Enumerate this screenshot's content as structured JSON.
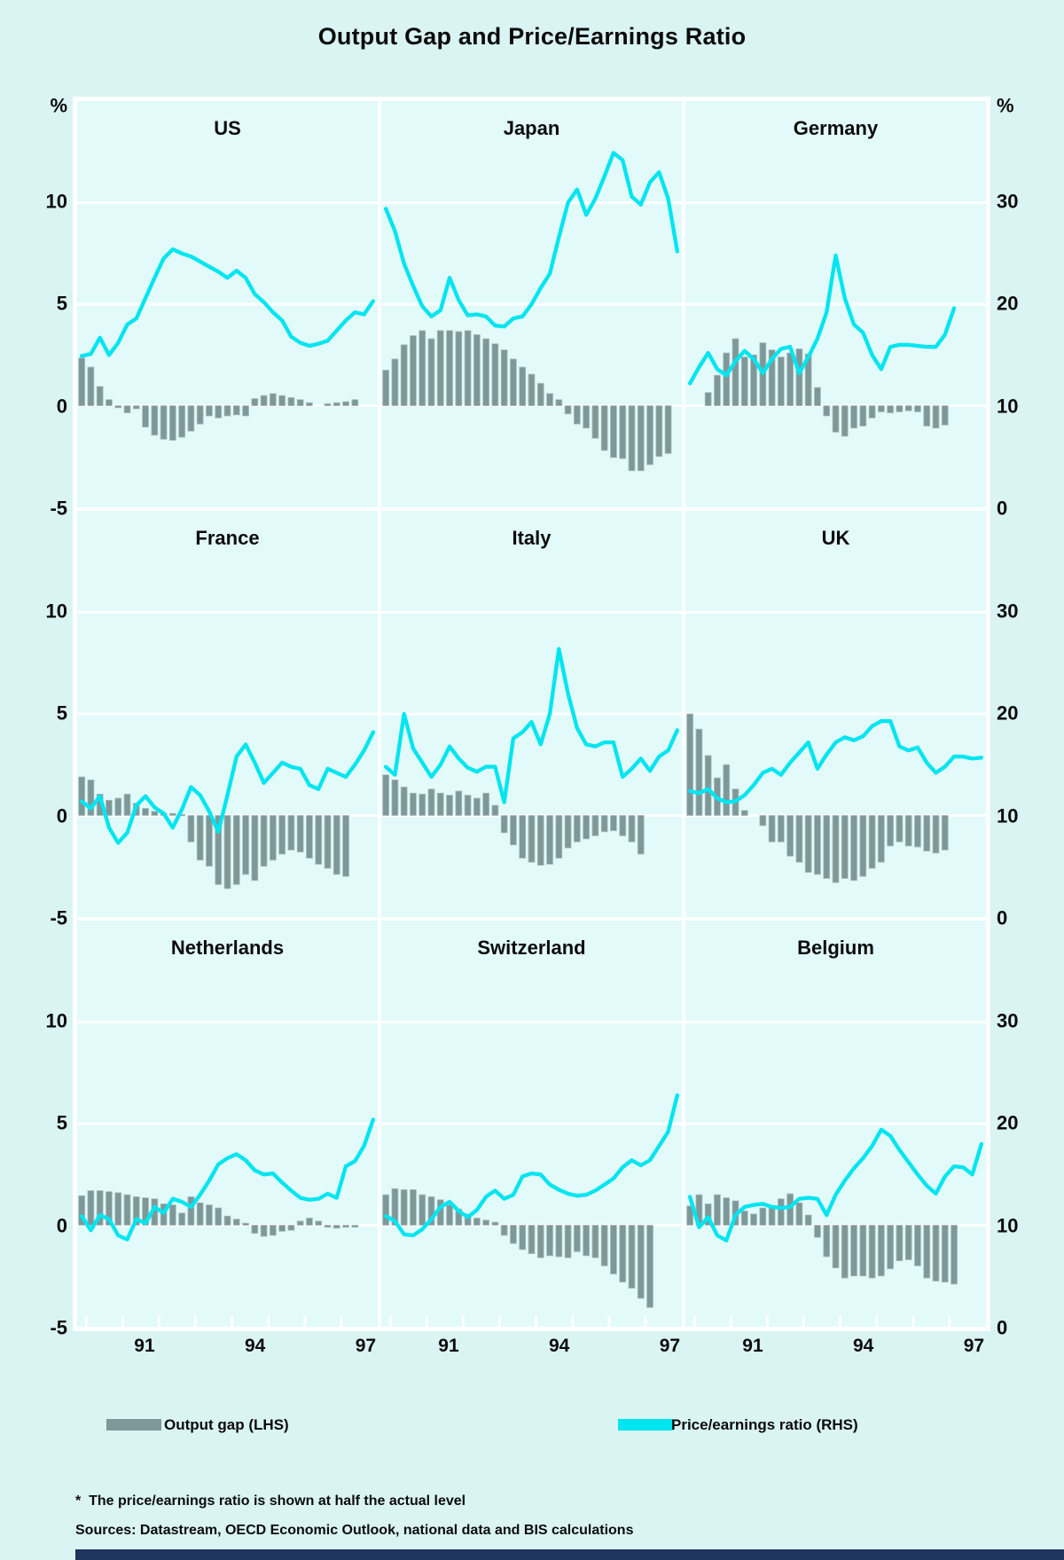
{
  "title": "Output Gap and Price/Earnings Ratio",
  "legend": {
    "output_gap_label": "Output gap (LHS)",
    "pe_ratio_label": "Price/earnings ratio (RHS)"
  },
  "footnote": "*  The price/earnings ratio is shown at half the actual level",
  "sources": "Sources: Datastream, OECD Economic Outlook, national data and BIS calculations",
  "colors": {
    "bar": "#7e9899",
    "bar_edge": "#a9bdbd",
    "line": "#00e5f0",
    "grid": "#ffffff",
    "panel_bg": "#e2fafa",
    "page_bg": "#d9f4f2",
    "bottom_bar": "#1e3560",
    "text": "#0b0b0b"
  },
  "chart_data": {
    "type": "bar+line",
    "title": "Output Gap and Price/Earnings Ratio",
    "frequency": "quarterly",
    "period": "1989Q4 - 1997Q4",
    "x_axis": {
      "tick_labels": [
        "91",
        "94",
        "97"
      ],
      "ticks_every": "1 year"
    },
    "left_axis": {
      "unit": "%",
      "ticks": [
        10,
        5,
        0,
        -5
      ],
      "range": [
        -5,
        15
      ],
      "series": "Output gap"
    },
    "right_axis": {
      "unit": "%",
      "ticks": [
        30,
        20,
        10,
        0
      ],
      "range": [
        0,
        40
      ],
      "series": "Price/earnings ratio (shown at half the actual level)"
    },
    "panels": [
      {
        "name": "US",
        "output_gap": [
          2.35,
          1.9,
          0.95,
          0.3,
          -0.1,
          -0.35,
          -0.15,
          -1.05,
          -1.45,
          -1.65,
          -1.7,
          -1.55,
          -1.25,
          -0.9,
          -0.5,
          -0.6,
          -0.5,
          -0.45,
          -0.5,
          0.35,
          0.5,
          0.6,
          0.5,
          0.4,
          0.3,
          0.15,
          null,
          0.1,
          0.15,
          0.2,
          0.3,
          null,
          null
        ],
        "pe_ratio_rhs": [
          14.9,
          15.1,
          16.7,
          15,
          16.2,
          18,
          18.6,
          20.6,
          22.6,
          24.5,
          25.4,
          25,
          24.7,
          24.2,
          23.7,
          23.2,
          22.6,
          23.3,
          22.6,
          21,
          20.2,
          19.2,
          18.4,
          16.8,
          16.2,
          15.9,
          16.1,
          16.4,
          17.4,
          18.4,
          19.2,
          19,
          20.3
        ]
      },
      {
        "name": "Japan",
        "output_gap": [
          1.75,
          2.3,
          3.0,
          3.45,
          3.7,
          3.3,
          3.7,
          3.7,
          3.65,
          3.7,
          3.5,
          3.3,
          3.05,
          2.75,
          2.3,
          1.9,
          1.55,
          1.1,
          0.6,
          0.3,
          -0.4,
          -0.9,
          -1.1,
          -1.6,
          -2.2,
          -2.55,
          -2.6,
          -3.2,
          -3.2,
          -2.9,
          -2.5,
          -2.35,
          null
        ],
        "pe_ratio_rhs": [
          29.4,
          27.2,
          24,
          21.8,
          19.8,
          18.8,
          19.4,
          22.6,
          20.4,
          18.9,
          19,
          18.8,
          17.9,
          17.8,
          18.6,
          18.8,
          20,
          21.6,
          23,
          26.6,
          30,
          31.3,
          28.8,
          30.4,
          32.6,
          34.9,
          34.2,
          30.6,
          29.8,
          32,
          33,
          30.4,
          25.2
        ]
      },
      {
        "name": "Germany",
        "output_gap": [
          null,
          null,
          0.65,
          1.5,
          2.6,
          3.3,
          2.4,
          2.5,
          3.1,
          2.75,
          2.4,
          2.6,
          2.8,
          2.55,
          0.9,
          -0.5,
          -1.3,
          -1.5,
          -1.1,
          -1.0,
          -0.6,
          -0.3,
          -0.35,
          -0.3,
          -0.25,
          -0.3,
          -1.0,
          -1.1,
          -0.95,
          null,
          null,
          null,
          null
        ],
        "pe_ratio_rhs": [
          12.2,
          13.8,
          15.2,
          13.6,
          13,
          14.4,
          15.4,
          14.6,
          13.2,
          14.6,
          15.6,
          15.8,
          13.2,
          14.8,
          16.6,
          19.2,
          24.8,
          20.6,
          18,
          17.2,
          15,
          13.6,
          15.8,
          16,
          16,
          15.9,
          15.8,
          15.8,
          17,
          19.6,
          null,
          null,
          null
        ]
      },
      {
        "name": "France",
        "output_gap": [
          1.9,
          1.75,
          1.05,
          0.75,
          0.85,
          1.05,
          0.6,
          0.35,
          0.2,
          0.1,
          0.1,
          0.05,
          -1.3,
          -2.2,
          -2.5,
          -3.4,
          -3.6,
          -3.4,
          -2.9,
          -3.2,
          -2.5,
          -2.2,
          -1.9,
          -1.7,
          -1.8,
          -2.1,
          -2.4,
          -2.6,
          -2.9,
          -3.0,
          null,
          null,
          null
        ],
        "pe_ratio_rhs": [
          11.4,
          10.7,
          11.9,
          8.8,
          7.3,
          8.3,
          11,
          11.9,
          10.8,
          10.2,
          8.8,
          10.6,
          12.8,
          12,
          10.4,
          8.4,
          12,
          15.8,
          17,
          15.2,
          13.2,
          14.2,
          15.2,
          14.8,
          14.6,
          13,
          12.6,
          14.6,
          14.2,
          13.8,
          15,
          16.4,
          18.2
        ]
      },
      {
        "name": "Italy",
        "output_gap": [
          2.0,
          1.75,
          1.4,
          1.1,
          1.05,
          1.3,
          1.1,
          1.0,
          1.2,
          1.0,
          0.85,
          1.1,
          0.5,
          -0.85,
          -1.45,
          -2.1,
          -2.3,
          -2.45,
          -2.4,
          -2.1,
          -1.6,
          -1.3,
          -1.15,
          -1.0,
          -0.8,
          -0.75,
          -1.0,
          -1.3,
          -1.9,
          null,
          null,
          null,
          null
        ],
        "pe_ratio_rhs": [
          14.8,
          14,
          20,
          16.6,
          15.2,
          13.8,
          15,
          16.8,
          15.6,
          14.7,
          14.3,
          14.8,
          14.8,
          11.3,
          17.6,
          18.2,
          19.2,
          17,
          20,
          26.4,
          22,
          18.6,
          17,
          16.8,
          17.2,
          17.2,
          13.8,
          14.6,
          15.6,
          14.4,
          15.8,
          16.4,
          18.4
        ]
      },
      {
        "name": "UK",
        "output_gap": [
          5.0,
          4.25,
          2.95,
          1.85,
          2.5,
          1.3,
          0.25,
          null,
          -0.5,
          -1.3,
          -1.3,
          -2.0,
          -2.3,
          -2.8,
          -2.9,
          -3.1,
          -3.3,
          -3.1,
          -3.2,
          -3.0,
          -2.6,
          -2.3,
          -1.5,
          -1.3,
          -1.5,
          -1.55,
          -1.75,
          -1.85,
          -1.7,
          null,
          null,
          null,
          null
        ],
        "pe_ratio_rhs": [
          12.4,
          12.2,
          12.6,
          11.7,
          11.3,
          11.4,
          12,
          13,
          14.2,
          14.6,
          14,
          15.2,
          16.2,
          17.2,
          14.6,
          16,
          17.2,
          17.7,
          17.4,
          17.8,
          18.8,
          19.3,
          19.3,
          16.8,
          16.4,
          16.7,
          15.2,
          14.2,
          14.8,
          15.8,
          15.8,
          15.6,
          15.7
        ]
      },
      {
        "name": "Netherlands",
        "output_gap": [
          1.45,
          1.7,
          1.7,
          1.65,
          1.6,
          1.5,
          1.4,
          1.35,
          1.3,
          1.05,
          1.0,
          0.6,
          1.4,
          1.1,
          1.0,
          0.85,
          0.45,
          0.3,
          0.1,
          -0.4,
          -0.55,
          -0.5,
          -0.3,
          -0.25,
          0.2,
          0.35,
          0.2,
          -0.1,
          -0.15,
          -0.1,
          -0.1,
          null,
          null
        ],
        "pe_ratio_rhs": [
          10.9,
          9.5,
          11,
          10.6,
          9,
          8.6,
          10.6,
          10.2,
          11.8,
          11.2,
          12.6,
          12.3,
          11.8,
          13,
          14.4,
          16,
          16.6,
          17,
          16.4,
          15.4,
          15,
          15.1,
          14.2,
          13.4,
          12.7,
          12.5,
          12.6,
          13.1,
          12.7,
          15.8,
          16.3,
          17.8,
          20.4
        ]
      },
      {
        "name": "Switzerland",
        "output_gap": [
          1.5,
          1.8,
          1.75,
          1.75,
          1.5,
          1.4,
          1.25,
          1.0,
          0.8,
          0.55,
          0.35,
          0.25,
          0.15,
          -0.5,
          -0.9,
          -1.2,
          -1.4,
          -1.6,
          -1.5,
          -1.55,
          -1.6,
          -1.3,
          -1.5,
          -1.6,
          -2.0,
          -2.4,
          -2.8,
          -3.1,
          -3.6,
          -4.05,
          null,
          null,
          null
        ],
        "pe_ratio_rhs": [
          10.9,
          10.4,
          9.1,
          9,
          9.6,
          10.6,
          11.8,
          12.3,
          11.4,
          10.8,
          11.5,
          12.8,
          13.4,
          12.6,
          13,
          14.8,
          15.1,
          15,
          14,
          13.5,
          13.1,
          12.9,
          13,
          13.4,
          14,
          14.6,
          15.7,
          16.4,
          15.9,
          16.4,
          17.8,
          19.2,
          22.8
        ]
      },
      {
        "name": "Belgium",
        "output_gap": [
          0.95,
          1.5,
          1.05,
          1.5,
          1.35,
          1.2,
          0.7,
          0.55,
          0.85,
          0.9,
          1.3,
          1.55,
          1.1,
          0.5,
          -0.6,
          -1.55,
          -2.1,
          -2.6,
          -2.5,
          -2.5,
          -2.6,
          -2.5,
          -2.15,
          -1.75,
          -1.7,
          -2.0,
          -2.6,
          -2.75,
          -2.8,
          -2.9,
          null,
          null,
          null
        ],
        "pe_ratio_rhs": [
          12.8,
          9.8,
          10.8,
          9,
          8.5,
          11,
          11.8,
          12,
          12.1,
          11.8,
          11.7,
          11.8,
          12.6,
          12.7,
          12.6,
          11,
          13,
          14.4,
          15.6,
          16.6,
          17.8,
          19.4,
          18.8,
          17.4,
          16.2,
          15,
          13.9,
          13.1,
          14.8,
          15.8,
          15.7,
          15,
          18
        ]
      }
    ],
    "legend_entries": [
      "Output gap (LHS)",
      "Price/earnings ratio (RHS)"
    ],
    "grid": "horizontal white gridlines",
    "legend_position": "below chart"
  }
}
